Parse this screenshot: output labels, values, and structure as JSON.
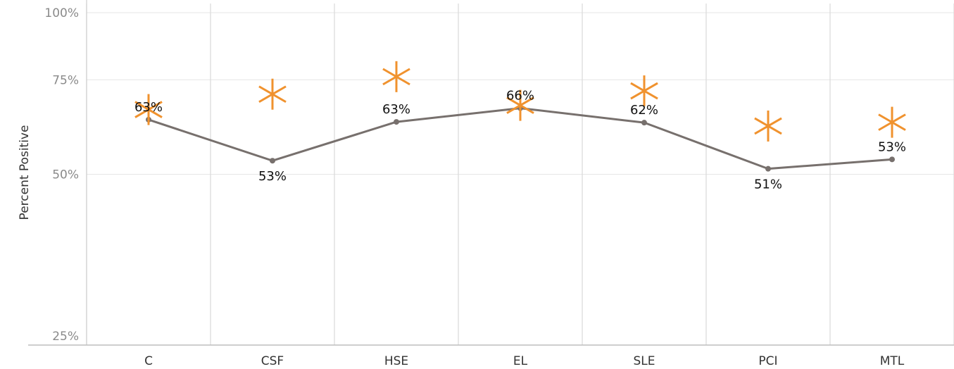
{
  "chart_data": {
    "type": "line",
    "title": "",
    "xlabel": "",
    "ylabel": "Percent Positive",
    "categories": [
      "C",
      "CSF",
      "HSE",
      "EL",
      "SLE",
      "PCI",
      "MTL"
    ],
    "yticks": [
      "25%",
      "50%",
      "75%",
      "100%"
    ],
    "ylim": [
      0.25,
      1.0
    ],
    "y_scale": "log",
    "grid": true,
    "legend": "none",
    "series": [
      {
        "name": "",
        "kind": "line",
        "values": [
          0.632,
          0.53,
          0.626,
          0.664,
          0.624,
          0.512,
          0.533
        ],
        "labels": [
          "63%",
          "53%",
          "63%",
          "66%",
          "62%",
          "51%",
          "53%"
        ],
        "color": "#77706d"
      },
      {
        "name": "",
        "kind": "asterisk",
        "values": [
          0.66,
          0.705,
          0.76,
          0.672,
          0.715,
          0.615,
          0.625
        ],
        "color": "#f0922e"
      }
    ]
  }
}
